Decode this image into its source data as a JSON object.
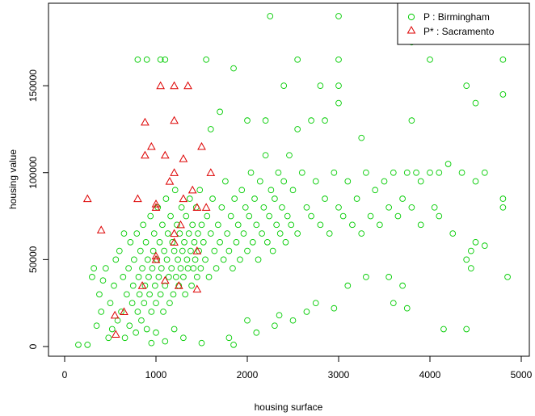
{
  "chart_data": {
    "type": "scatter",
    "title": "",
    "xlabel": "housing surface",
    "ylabel": "housing value",
    "xlim": [
      0,
      5000
    ],
    "ylim": [
      0,
      190000
    ],
    "xticks": [
      0,
      1000,
      2000,
      3000,
      4000,
      5000
    ],
    "yticks": [
      0,
      50000,
      100000,
      150000
    ],
    "xtick_labels": [
      "0",
      "1000",
      "2000",
      "3000",
      "4000",
      "5000"
    ],
    "ytick_labels": [
      "0",
      "50000",
      "100000",
      "150000"
    ],
    "grid": false,
    "legend_position": "top-right",
    "series": [
      {
        "name": "P : Birmingham",
        "marker": "circle",
        "color": "#00cc00",
        "points": [
          [
            150,
            1000
          ],
          [
            250,
            1000
          ],
          [
            300,
            40000
          ],
          [
            320,
            45000
          ],
          [
            350,
            12000
          ],
          [
            380,
            30000
          ],
          [
            400,
            20000
          ],
          [
            420,
            38000
          ],
          [
            450,
            45000
          ],
          [
            480,
            5000
          ],
          [
            500,
            25000
          ],
          [
            520,
            10000
          ],
          [
            540,
            35000
          ],
          [
            560,
            50000
          ],
          [
            580,
            15000
          ],
          [
            600,
            55000
          ],
          [
            620,
            20000
          ],
          [
            640,
            40000
          ],
          [
            650,
            65000
          ],
          [
            660,
            5000
          ],
          [
            680,
            30000
          ],
          [
            700,
            45000
          ],
          [
            710,
            12000
          ],
          [
            720,
            60000
          ],
          [
            740,
            25000
          ],
          [
            750,
            35000
          ],
          [
            760,
            50000
          ],
          [
            780,
            8000
          ],
          [
            790,
            65000
          ],
          [
            800,
            20000
          ],
          [
            810,
            40000
          ],
          [
            820,
            30000
          ],
          [
            830,
            55000
          ],
          [
            840,
            15000
          ],
          [
            850,
            45000
          ],
          [
            860,
            70000
          ],
          [
            870,
            25000
          ],
          [
            880,
            35000
          ],
          [
            890,
            60000
          ],
          [
            900,
            10000
          ],
          [
            910,
            50000
          ],
          [
            920,
            40000
          ],
          [
            930,
            30000
          ],
          [
            940,
            75000
          ],
          [
            950,
            20000
          ],
          [
            960,
            45000
          ],
          [
            970,
            55000
          ],
          [
            980,
            65000
          ],
          [
            990,
            35000
          ],
          [
            1000,
            25000
          ],
          [
            1010,
            50000
          ],
          [
            1020,
            80000
          ],
          [
            1030,
            40000
          ],
          [
            1040,
            60000
          ],
          [
            1050,
            30000
          ],
          [
            1060,
            45000
          ],
          [
            1070,
            70000
          ],
          [
            1080,
            20000
          ],
          [
            1090,
            55000
          ],
          [
            1100,
            35000
          ],
          [
            1110,
            85000
          ],
          [
            1120,
            50000
          ],
          [
            1130,
            65000
          ],
          [
            1140,
            40000
          ],
          [
            1150,
            25000
          ],
          [
            1160,
            75000
          ],
          [
            1170,
            45000
          ],
          [
            1180,
            60000
          ],
          [
            1190,
            30000
          ],
          [
            1200,
            55000
          ],
          [
            1210,
            90000
          ],
          [
            1220,
            40000
          ],
          [
            1230,
            70000
          ],
          [
            1240,
            50000
          ],
          [
            1250,
            35000
          ],
          [
            1260,
            65000
          ],
          [
            1270,
            45000
          ],
          [
            1280,
            80000
          ],
          [
            1290,
            55000
          ],
          [
            1300,
            40000
          ],
          [
            1310,
            60000
          ],
          [
            1320,
            30000
          ],
          [
            1330,
            75000
          ],
          [
            1340,
            50000
          ],
          [
            1350,
            45000
          ],
          [
            1360,
            65000
          ],
          [
            1370,
            85000
          ],
          [
            1380,
            55000
          ],
          [
            1390,
            35000
          ],
          [
            1400,
            70000
          ],
          [
            1410,
            45000
          ],
          [
            1420,
            60000
          ],
          [
            1430,
            50000
          ],
          [
            1440,
            80000
          ],
          [
            1450,
            40000
          ],
          [
            1460,
            65000
          ],
          [
            1470,
            55000
          ],
          [
            1480,
            90000
          ],
          [
            1490,
            45000
          ],
          [
            1500,
            70000
          ],
          [
            1520,
            60000
          ],
          [
            1540,
            50000
          ],
          [
            1560,
            75000
          ],
          [
            1580,
            40000
          ],
          [
            1600,
            65000
          ],
          [
            1620,
            85000
          ],
          [
            1640,
            55000
          ],
          [
            1660,
            45000
          ],
          [
            1680,
            70000
          ],
          [
            1700,
            60000
          ],
          [
            1720,
            80000
          ],
          [
            1740,
            50000
          ],
          [
            1760,
            95000
          ],
          [
            1780,
            65000
          ],
          [
            1800,
            55000
          ],
          [
            1820,
            75000
          ],
          [
            1840,
            45000
          ],
          [
            1860,
            85000
          ],
          [
            1880,
            60000
          ],
          [
            1900,
            70000
          ],
          [
            1920,
            50000
          ],
          [
            1940,
            90000
          ],
          [
            1960,
            65000
          ],
          [
            1980,
            80000
          ],
          [
            2000,
            55000
          ],
          [
            2020,
            75000
          ],
          [
            2040,
            100000
          ],
          [
            2060,
            60000
          ],
          [
            2080,
            85000
          ],
          [
            2100,
            70000
          ],
          [
            2120,
            50000
          ],
          [
            2140,
            95000
          ],
          [
            2160,
            65000
          ],
          [
            2180,
            80000
          ],
          [
            2200,
            110000
          ],
          [
            2220,
            60000
          ],
          [
            2240,
            75000
          ],
          [
            2260,
            90000
          ],
          [
            2280,
            55000
          ],
          [
            2300,
            85000
          ],
          [
            2320,
            70000
          ],
          [
            2340,
            100000
          ],
          [
            2360,
            65000
          ],
          [
            2380,
            80000
          ],
          [
            2400,
            95000
          ],
          [
            2420,
            60000
          ],
          [
            2440,
            75000
          ],
          [
            2460,
            110000
          ],
          [
            2480,
            70000
          ],
          [
            2500,
            90000
          ],
          [
            2550,
            65000
          ],
          [
            2600,
            100000
          ],
          [
            2650,
            80000
          ],
          [
            2700,
            75000
          ],
          [
            2750,
            95000
          ],
          [
            2800,
            70000
          ],
          [
            2850,
            85000
          ],
          [
            2900,
            65000
          ],
          [
            2950,
            100000
          ],
          [
            3000,
            80000
          ],
          [
            3050,
            75000
          ],
          [
            3100,
            95000
          ],
          [
            3150,
            70000
          ],
          [
            3200,
            85000
          ],
          [
            3250,
            65000
          ],
          [
            3300,
            100000
          ],
          [
            3350,
            75000
          ],
          [
            3400,
            90000
          ],
          [
            3450,
            70000
          ],
          [
            3500,
            95000
          ],
          [
            3550,
            80000
          ],
          [
            3600,
            100000
          ],
          [
            3650,
            75000
          ],
          [
            3700,
            85000
          ],
          [
            3750,
            100000
          ],
          [
            3800,
            80000
          ],
          [
            3850,
            100000
          ],
          [
            3900,
            95000
          ],
          [
            4000,
            100000
          ],
          [
            4100,
            100000
          ],
          [
            2250,
            190000
          ],
          [
            3000,
            190000
          ],
          [
            800,
            165000
          ],
          [
            900,
            165000
          ],
          [
            1050,
            165000
          ],
          [
            1100,
            165000
          ],
          [
            1550,
            165000
          ],
          [
            2550,
            165000
          ],
          [
            3000,
            165000
          ],
          [
            3800,
            175000
          ],
          [
            4000,
            165000
          ],
          [
            4800,
            165000
          ],
          [
            1850,
            160000
          ],
          [
            2400,
            150000
          ],
          [
            2800,
            150000
          ],
          [
            3000,
            150000
          ],
          [
            4400,
            150000
          ],
          [
            4450,
            180000
          ],
          [
            4500,
            140000
          ],
          [
            4800,
            145000
          ],
          [
            3000,
            140000
          ],
          [
            1700,
            135000
          ],
          [
            2000,
            130000
          ],
          [
            2200,
            130000
          ],
          [
            2700,
            130000
          ],
          [
            2850,
            130000
          ],
          [
            3800,
            130000
          ],
          [
            3250,
            120000
          ],
          [
            1600,
            125000
          ],
          [
            2550,
            125000
          ],
          [
            4200,
            105000
          ],
          [
            4350,
            100000
          ],
          [
            4500,
            95000
          ],
          [
            4600,
            100000
          ],
          [
            4800,
            85000
          ],
          [
            4800,
            80000
          ],
          [
            4050,
            80000
          ],
          [
            4100,
            75000
          ],
          [
            3900,
            70000
          ],
          [
            4250,
            65000
          ],
          [
            4450,
            55000
          ],
          [
            4500,
            60000
          ],
          [
            4600,
            58000
          ],
          [
            4400,
            50000
          ],
          [
            4450,
            45000
          ],
          [
            4850,
            40000
          ],
          [
            3700,
            35000
          ],
          [
            3550,
            40000
          ],
          [
            3600,
            25000
          ],
          [
            3750,
            22000
          ],
          [
            4150,
            10000
          ],
          [
            4400,
            10000
          ],
          [
            1800,
            5000
          ],
          [
            2100,
            8000
          ],
          [
            2300,
            12000
          ],
          [
            2350,
            18000
          ],
          [
            2500,
            15000
          ],
          [
            2650,
            20000
          ],
          [
            2750,
            25000
          ],
          [
            2950,
            22000
          ],
          [
            3100,
            35000
          ],
          [
            3300,
            40000
          ],
          [
            2000,
            15000
          ],
          [
            1850,
            1000
          ],
          [
            1500,
            2000
          ],
          [
            1300,
            5000
          ],
          [
            1200,
            10000
          ],
          [
            1100,
            3000
          ],
          [
            1000,
            8000
          ],
          [
            950,
            2000
          ]
        ]
      },
      {
        "name": "P* : Sacramento",
        "marker": "triangle",
        "color": "#dd0000",
        "points": [
          [
            250,
            85000
          ],
          [
            400,
            67000
          ],
          [
            550,
            18000
          ],
          [
            560,
            7000
          ],
          [
            650,
            20000
          ],
          [
            800,
            85000
          ],
          [
            850,
            35000
          ],
          [
            880,
            129000
          ],
          [
            880,
            110000
          ],
          [
            950,
            115000
          ],
          [
            1000,
            80000
          ],
          [
            1000,
            82000
          ],
          [
            1000,
            50000
          ],
          [
            1000,
            52000
          ],
          [
            1050,
            150000
          ],
          [
            1100,
            110000
          ],
          [
            1100,
            38000
          ],
          [
            1150,
            95000
          ],
          [
            1200,
            150000
          ],
          [
            1200,
            130000
          ],
          [
            1200,
            100000
          ],
          [
            1200,
            65000
          ],
          [
            1200,
            60000
          ],
          [
            1250,
            35000
          ],
          [
            1270,
            70000
          ],
          [
            1300,
            108000
          ],
          [
            1300,
            85000
          ],
          [
            1350,
            150000
          ],
          [
            1400,
            90000
          ],
          [
            1450,
            80000
          ],
          [
            1450,
            55000
          ],
          [
            1450,
            33000
          ],
          [
            1500,
            115000
          ],
          [
            1550,
            80000
          ],
          [
            1600,
            100000
          ]
        ]
      }
    ]
  }
}
